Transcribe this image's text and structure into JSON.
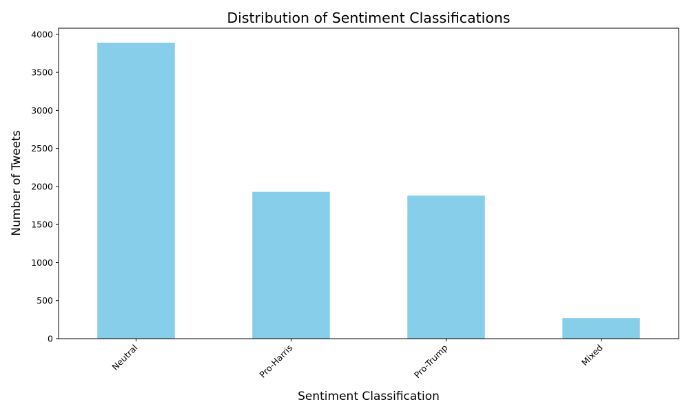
{
  "chart_data": {
    "type": "bar",
    "title": "Distribution of Sentiment Classifications",
    "xlabel": "Sentiment Classification",
    "ylabel": "Number of Tweets",
    "categories": [
      "Neutral",
      "Pro-Harris",
      "Pro-Trump",
      "Mixed"
    ],
    "values": [
      3890,
      1930,
      1880,
      270
    ],
    "ylim": [
      0,
      4080
    ],
    "yticks": [
      0,
      500,
      1000,
      1500,
      2000,
      2500,
      3000,
      3500,
      4000
    ],
    "bar_color": "#87ceeb",
    "grid": false,
    "legend": "none",
    "xtick_rotation": "45 degrees"
  }
}
